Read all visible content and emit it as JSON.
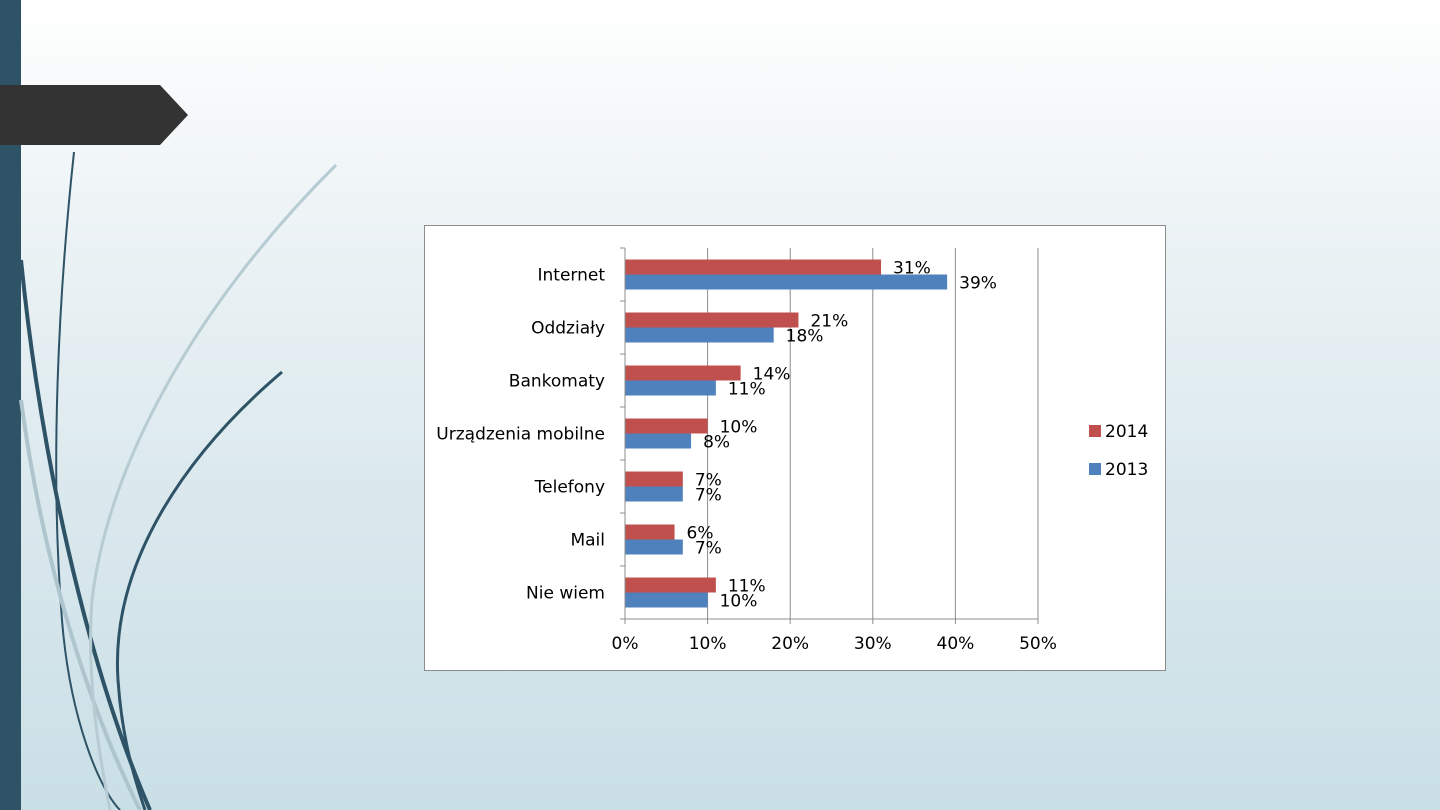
{
  "slide": {
    "accent_color": "#2e5367",
    "title_tab_color": "#333333"
  },
  "chart_data": {
    "type": "bar",
    "orientation": "horizontal",
    "categories": [
      "Internet",
      "Oddziały",
      "Bankomaty",
      "Urządzenia mobilne",
      "Telefony",
      "Mail",
      "Nie wiem"
    ],
    "series": [
      {
        "name": "2014",
        "color": "#c0504d",
        "values": [
          31,
          21,
          14,
          10,
          7,
          6,
          11
        ]
      },
      {
        "name": "2013",
        "color": "#4f81bd",
        "values": [
          39,
          18,
          11,
          8,
          7,
          7,
          10
        ]
      }
    ],
    "xlim": [
      0,
      50
    ],
    "x_ticks": [
      0,
      10,
      20,
      30,
      40,
      50
    ],
    "x_tick_labels": [
      "0%",
      "10%",
      "20%",
      "30%",
      "40%",
      "50%"
    ],
    "value_suffix": "%",
    "grid": true,
    "legend_position": "right"
  }
}
